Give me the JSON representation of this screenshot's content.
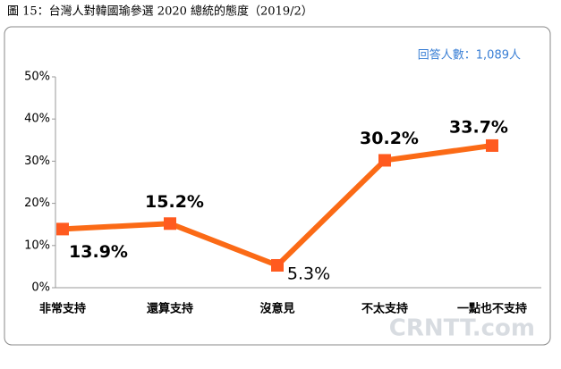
{
  "chart_data": {
    "type": "line",
    "title": "圖 15：台灣人對韓國瑜參選 2020 總統的態度（2019/2）",
    "annotation": "回答人數：1,089人",
    "watermark": "CRNTT.com",
    "categories": [
      "非常支持",
      "還算支持",
      "沒意見",
      "不太支持",
      "一點也不支持"
    ],
    "series": [
      {
        "name": "態度",
        "color": "#fb6a16",
        "values": [
          13.9,
          15.2,
          5.3,
          30.2,
          33.7
        ],
        "value_labels": [
          "13.9%",
          "15.2%",
          "5.3%",
          "30.2%",
          "33.7%"
        ]
      }
    ],
    "ylim": [
      0,
      50
    ],
    "yticks": [
      {
        "value": 0,
        "label": "0%"
      },
      {
        "value": 10,
        "label": "10%"
      },
      {
        "value": 20,
        "label": "20%"
      },
      {
        "value": 30,
        "label": "30%"
      },
      {
        "value": 40,
        "label": "40%"
      },
      {
        "value": 50,
        "label": "50%"
      }
    ],
    "grid": false
  }
}
